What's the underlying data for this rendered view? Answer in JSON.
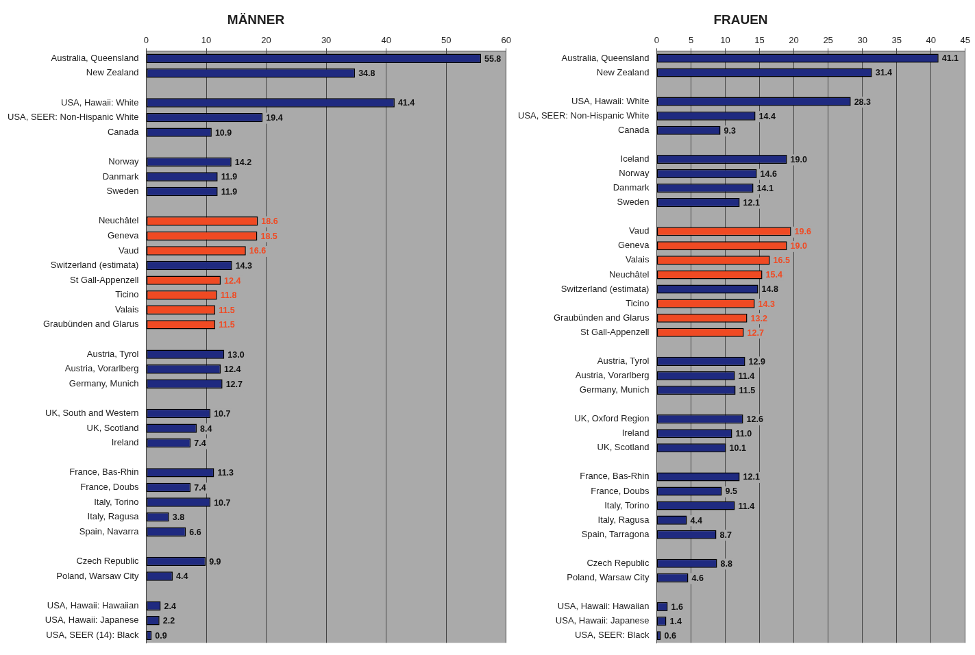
{
  "chart_data": [
    {
      "type": "bar",
      "orientation": "horizontal",
      "title": "MÄNNER",
      "grid": "x",
      "xlim": [
        0,
        60
      ],
      "xticks": [
        0,
        10,
        20,
        30,
        40,
        50,
        60
      ],
      "categories": [
        "Australia, Queensland",
        "New Zealand",
        null,
        "USA, Hawaii: White",
        "USA, SEER: Non-Hispanic White",
        "Canada",
        null,
        "Norway",
        "Danmark",
        "Sweden",
        null,
        "Neuchâtel",
        "Geneva",
        "Vaud",
        "Switzerland (estimata)",
        "St Gall-Appenzell",
        "Ticino",
        "Valais",
        "Graubünden and Glarus",
        null,
        "Austria, Tyrol",
        "Austria, Vorarlberg",
        "Germany, Munich",
        null,
        "UK, South and Western",
        "UK, Scotland",
        "Ireland",
        null,
        "France, Bas-Rhin",
        "France, Doubs",
        "Italy, Torino",
        "Italy, Ragusa",
        "Spain, Navarra",
        null,
        "Czech Republic",
        "Poland, Warsaw City",
        null,
        "USA, Hawaii: Hawaiian",
        "USA, Hawaii: Japanese",
        "USA, SEER (14): Black"
      ],
      "values": [
        55.8,
        34.8,
        null,
        41.4,
        19.4,
        10.9,
        null,
        14.2,
        11.9,
        11.9,
        null,
        18.6,
        18.5,
        16.6,
        14.3,
        12.4,
        11.8,
        11.5,
        11.5,
        null,
        13.0,
        12.4,
        12.7,
        null,
        10.7,
        8.4,
        7.4,
        null,
        11.3,
        7.4,
        10.7,
        3.8,
        6.6,
        null,
        9.9,
        4.4,
        null,
        2.4,
        2.2,
        0.9
      ],
      "value_labels": [
        "55.8",
        "34.8",
        null,
        "41.4",
        "19.4",
        "10.9",
        null,
        "14.2",
        "11.9",
        "11.9",
        null,
        "18.6",
        "18.5",
        "16.6",
        "14.3",
        "12.4",
        "11.8",
        "11.5",
        "11.5",
        null,
        "13.0",
        "12.4",
        "12.7",
        null,
        "10.7",
        "8.4",
        "7.4",
        null,
        "11.3",
        "7.4",
        "10.7",
        "3.8",
        "6.6",
        null,
        "9.9",
        "4.4",
        null,
        "2.4",
        "2.2",
        "0.9"
      ],
      "colors": [
        "#1f2a80",
        "#1f2a80",
        null,
        "#1f2a80",
        "#1f2a80",
        "#1f2a80",
        null,
        "#1f2a80",
        "#1f2a80",
        "#1f2a80",
        null,
        "#f04a23",
        "#f04a23",
        "#f04a23",
        "#1f2a80",
        "#f04a23",
        "#f04a23",
        "#f04a23",
        "#f04a23",
        null,
        "#1f2a80",
        "#1f2a80",
        "#1f2a80",
        null,
        "#1f2a80",
        "#1f2a80",
        "#1f2a80",
        null,
        "#1f2a80",
        "#1f2a80",
        "#1f2a80",
        "#1f2a80",
        "#1f2a80",
        null,
        "#1f2a80",
        "#1f2a80",
        null,
        "#1f2a80",
        "#1f2a80",
        "#1f2a80"
      ]
    },
    {
      "type": "bar",
      "orientation": "horizontal",
      "title": "FRAUEN",
      "grid": "x",
      "xlim": [
        0,
        45
      ],
      "xticks": [
        0,
        5,
        10,
        15,
        20,
        25,
        30,
        35,
        40,
        45
      ],
      "categories": [
        "Australia, Queensland",
        "New Zealand",
        null,
        "USA, Hawaii: White",
        "USA, SEER: Non-Hispanic White",
        "Canada",
        null,
        "Iceland",
        "Norway",
        "Danmark",
        "Sweden",
        null,
        "Vaud",
        "Geneva",
        "Valais",
        "Neuchâtel",
        "Switzerland (estimata)",
        "Ticino",
        "Graubünden and Glarus",
        "St Gall-Appenzell",
        null,
        "Austria, Tyrol",
        "Austria, Vorarlberg",
        "Germany, Munich",
        null,
        "UK, Oxford Region",
        "Ireland",
        "UK, Scotland",
        null,
        "France, Bas-Rhin",
        "France, Doubs",
        "Italy, Torino",
        "Italy, Ragusa",
        "Spain, Tarragona",
        null,
        "Czech Republic",
        "Poland, Warsaw City",
        null,
        "USA, Hawaii: Hawaiian",
        "USA, Hawaii: Japanese",
        "USA, SEER: Black"
      ],
      "values": [
        41.1,
        31.4,
        null,
        28.3,
        14.4,
        9.3,
        null,
        19.0,
        14.6,
        14.1,
        12.1,
        null,
        19.6,
        19.0,
        16.5,
        15.4,
        14.8,
        14.3,
        13.2,
        12.7,
        null,
        12.9,
        11.4,
        11.5,
        null,
        12.6,
        11.0,
        10.1,
        null,
        12.1,
        9.5,
        11.4,
        4.4,
        8.7,
        null,
        8.8,
        4.6,
        null,
        1.6,
        1.4,
        0.6
      ],
      "value_labels": [
        "41.1",
        "31.4",
        null,
        "28.3",
        "14.4",
        "9.3",
        null,
        "19.0",
        "14.6",
        "14.1",
        "12.1",
        null,
        "19.6",
        "19.0",
        "16.5",
        "15.4",
        "14.8",
        "14.3",
        "13.2",
        "12.7",
        null,
        "12.9",
        "11.4",
        "11.5",
        null,
        "12.6",
        "11.0",
        "10.1",
        null,
        "12.1",
        "9.5",
        "11.4",
        "4.4",
        "8.7",
        null,
        "8.8",
        "4.6",
        null,
        "1.6",
        "1.4",
        "0.6"
      ],
      "colors": [
        "#1f2a80",
        "#1f2a80",
        null,
        "#1f2a80",
        "#1f2a80",
        "#1f2a80",
        null,
        "#1f2a80",
        "#1f2a80",
        "#1f2a80",
        "#1f2a80",
        null,
        "#f04a23",
        "#f04a23",
        "#f04a23",
        "#f04a23",
        "#1f2a80",
        "#f04a23",
        "#f04a23",
        "#f04a23",
        null,
        "#1f2a80",
        "#1f2a80",
        "#1f2a80",
        null,
        "#1f2a80",
        "#1f2a80",
        "#1f2a80",
        null,
        "#1f2a80",
        "#1f2a80",
        "#1f2a80",
        "#1f2a80",
        "#1f2a80",
        null,
        "#1f2a80",
        "#1f2a80",
        null,
        "#1f2a80",
        "#1f2a80",
        "#1f2a80"
      ]
    }
  ]
}
